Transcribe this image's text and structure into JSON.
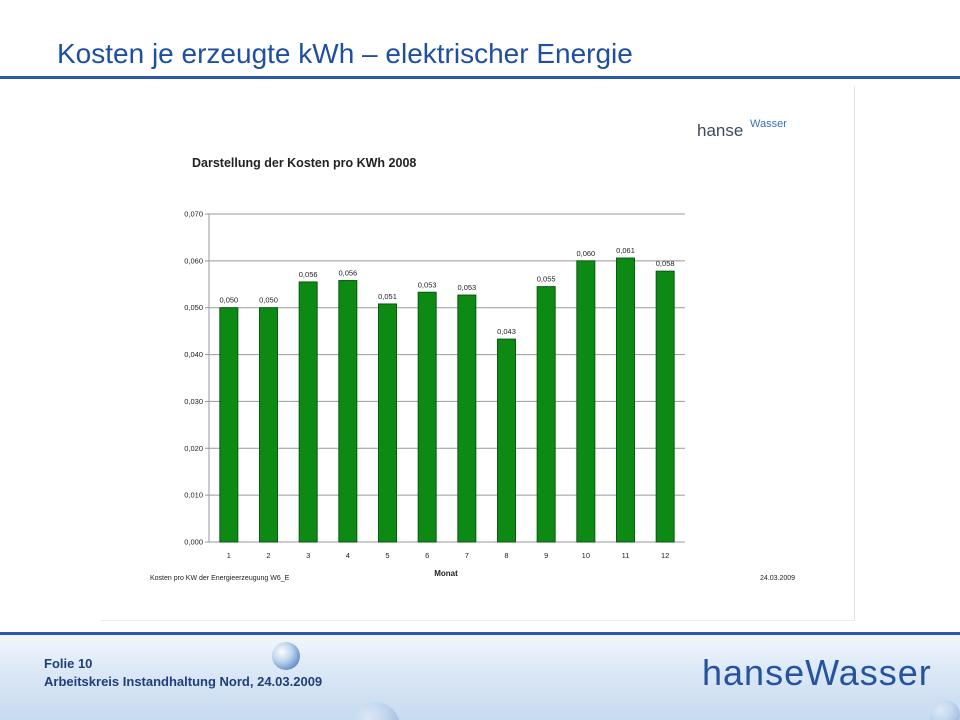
{
  "slide": {
    "title": "Kosten je erzeugte kWh – elektrischer Energie"
  },
  "footer": {
    "line1": "Folie 10",
    "line2": "Arbeitskreis Instandhaltung Nord, 24.03.2009",
    "logo_text": "hanseWasser"
  },
  "inner_logo": {
    "part1": "hanse",
    "part2": "Wasser"
  },
  "colors": {
    "title": "#1f4fa1",
    "bar_fill": "#0d8a14",
    "bar_stroke": "#0a5a0e",
    "grid": "#999999"
  },
  "chart_data": {
    "type": "bar",
    "title": "Darstellung der Kosten pro KWh 2008",
    "xlabel": "Monat",
    "ylabel": "",
    "caption": "Kosten pro KW der Energieerzeugung W6_E",
    "date": "24.03.2009",
    "categories": [
      "1",
      "2",
      "3",
      "4",
      "5",
      "6",
      "7",
      "8",
      "9",
      "10",
      "11",
      "12"
    ],
    "values": [
      0.05,
      0.05,
      0.0555,
      0.0558,
      0.0508,
      0.0533,
      0.0527,
      0.0433,
      0.0545,
      0.06,
      0.0606,
      0.0578
    ],
    "value_labels": [
      "0,050",
      "0,050",
      "0,056",
      "0,056",
      "0,051",
      "0,053",
      "0,053",
      "0,043",
      "0,055",
      "0,060",
      "0,061",
      "0,058"
    ],
    "ylim": [
      0,
      0.07
    ],
    "yticks": [
      "0,000",
      "0,010",
      "0,020",
      "0,030",
      "0,040",
      "0,050",
      "0,060",
      "0,070"
    ],
    "grid": true,
    "legend": "none"
  }
}
